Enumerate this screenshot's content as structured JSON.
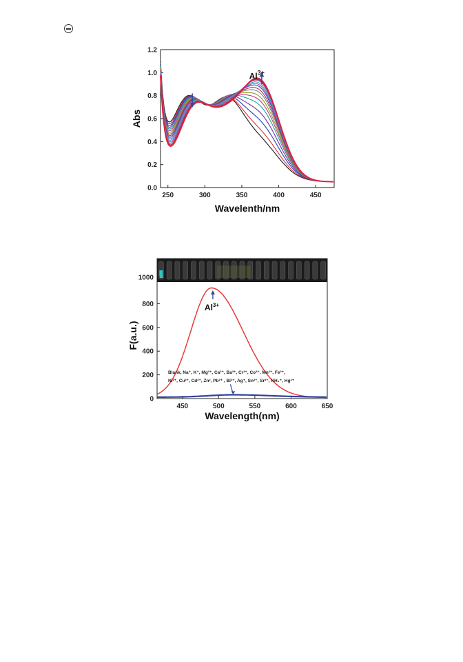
{
  "page": {
    "marker_icon": "circle-minus-icon"
  },
  "chart_data": [
    {
      "type": "line",
      "xlabel": "Wavelenth/nm",
      "ylabel": "Abs",
      "xlim": [
        240,
        475
      ],
      "ylim": [
        0.0,
        1.2
      ],
      "x_ticks": [
        250,
        300,
        350,
        400,
        450
      ],
      "y_ticks": [
        "0.0",
        "0.2",
        "0.4",
        "0.6",
        "0.8",
        "1.0",
        "1.2"
      ],
      "grid": false,
      "annotation": {
        "text": "Al",
        "sup": "3+",
        "x": 373,
        "y": 0.98
      },
      "arrows": [
        {
          "direction": "down",
          "x": 283,
          "y_from": 0.82,
          "y_to": 0.7
        },
        {
          "direction": "up",
          "x": 377,
          "y_from": 0.9,
          "y_to": 1.0
        }
      ],
      "series_colors": [
        "#1a1a1a",
        "#e03030",
        "#2040c0",
        "#7030a0",
        "#20a0a0",
        "#c04080",
        "#90a020",
        "#708090",
        "#b03030",
        "#3050d0",
        "#a050c0",
        "#20b0b0",
        "#d05090",
        "#4060a0",
        "#c02020",
        "#e02040"
      ],
      "series_peak_abs": [
        0.26,
        0.33,
        0.42,
        0.5,
        0.57,
        0.62,
        0.66,
        0.7,
        0.73,
        0.76,
        0.78,
        0.8,
        0.82,
        0.83,
        0.84,
        0.85
      ],
      "series_peak_wavelength": 375
    },
    {
      "type": "line",
      "xlabel": "Wavelength(nm)",
      "ylabel": "F(a.u.)",
      "xlim": [
        415,
        650
      ],
      "ylim": [
        0,
        1000
      ],
      "x_ticks": [
        450,
        500,
        550,
        600,
        650
      ],
      "y_ticks": [
        0,
        200,
        400,
        600,
        800,
        1000
      ],
      "grid": false,
      "annotation": {
        "text": "Al",
        "sup": "3+"
      },
      "ion_list_line1": "Blank, Na⁺, K⁺, Mg²⁺, Ca²⁺, Ba²⁺, Cr³⁺, Co²⁺, Mn²⁺, Fe³⁺,",
      "ion_list_line2": "Ni²⁺, Cu²⁺, Cd²⁺, Zn², Pb²⁺ , Bi³⁺, Ag⁺, Sn²⁺, Sr²⁺, NH₄⁺, Hg²⁺",
      "series": [
        {
          "color": "#e83a3a",
          "peak_x": 490,
          "peak_y": 925,
          "width": 38
        },
        {
          "color": "#3040a0",
          "peak_x": 520,
          "peak_y": 20,
          "width": 45
        }
      ],
      "inset_photo": {
        "vial_count": 21,
        "highlight_index": 0,
        "highlight_color": "#2ec4c0"
      }
    }
  ]
}
